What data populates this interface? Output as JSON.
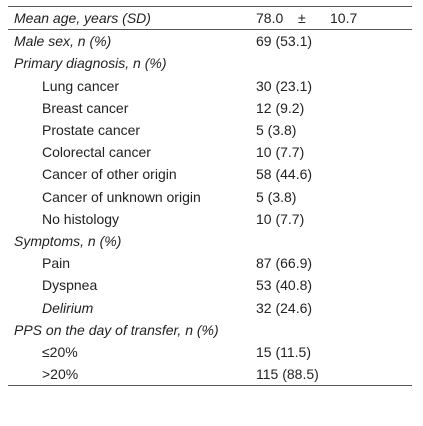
{
  "table": {
    "rows": [
      {
        "label": "Mean age, years (SD)",
        "value": "",
        "mean": "78.0",
        "pm": "±",
        "sd": "10.7",
        "level": 0,
        "italic": true,
        "type": "mean"
      },
      {
        "label": "Male sex, n (%)",
        "value": "69 (53.1)",
        "level": 0,
        "italic": true
      },
      {
        "label": "Primary diagnosis, n (%)",
        "value": "",
        "level": 0,
        "italic": true
      },
      {
        "label": "Lung cancer",
        "value": "30 (23.1)",
        "level": 1,
        "italic": false
      },
      {
        "label": "Breast cancer",
        "value": "12 (9.2)",
        "level": 1,
        "italic": false
      },
      {
        "label": "Prostate cancer",
        "value": "5 (3.8)",
        "level": 1,
        "italic": false
      },
      {
        "label": "Colorectal cancer",
        "value": "10 (7.7)",
        "level": 1,
        "italic": false
      },
      {
        "label": "Cancer of other origin",
        "value": "58 (44.6)",
        "level": 1,
        "italic": false
      },
      {
        "label": "Cancer of unknown origin",
        "value": "5 (3.8)",
        "level": 1,
        "italic": false
      },
      {
        "label": "No histology",
        "value": "10 (7.7)",
        "level": 1,
        "italic": false
      },
      {
        "label": "Symptoms, n (%)",
        "value": "",
        "level": 0,
        "italic": true
      },
      {
        "label": "Pain",
        "value": "87 (66.9)",
        "level": 1,
        "italic": false
      },
      {
        "label": "Dyspnea",
        "value": "53 (40.8)",
        "level": 1,
        "italic": false
      },
      {
        "label": "Delirium",
        "value": "32 (24.6)",
        "level": 1,
        "italic": true
      },
      {
        "label": "PPS on the day of transfer, n (%)",
        "value": "",
        "level": 0,
        "italic": true
      },
      {
        "label": "≤20%",
        "value": "15 (11.5)",
        "level": 1,
        "italic": false
      },
      {
        "label": ">20%",
        "value": "115 (88.5)",
        "level": 1,
        "italic": false
      }
    ]
  }
}
